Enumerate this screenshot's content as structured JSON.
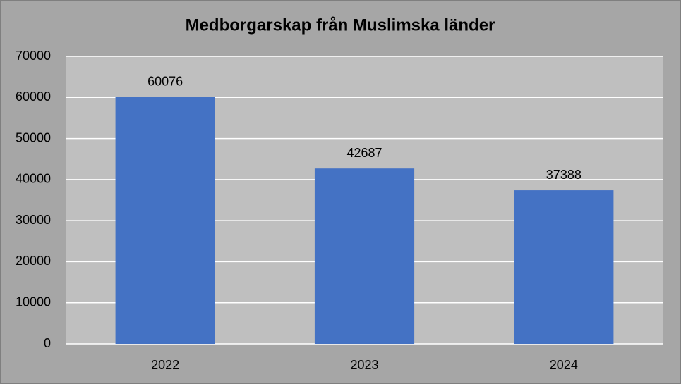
{
  "chart_data": {
    "type": "bar",
    "title": "Medborgarskap från Muslimska länder",
    "categories": [
      "2022",
      "2023",
      "2024"
    ],
    "values": [
      60076,
      42687,
      37388
    ],
    "color": "#4472c4",
    "ylim": [
      0,
      70000
    ],
    "yticks": [
      0,
      10000,
      20000,
      30000,
      40000,
      50000,
      60000,
      70000
    ],
    "grid": true
  }
}
